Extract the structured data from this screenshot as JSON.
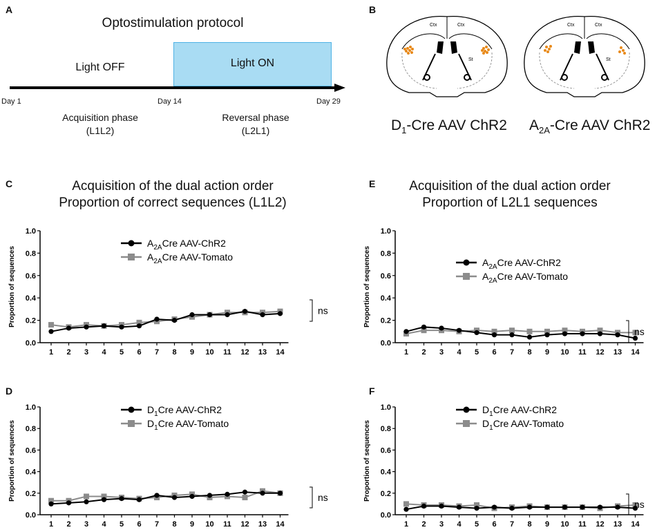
{
  "panels": {
    "a": {
      "letter": "A",
      "title": "Optostimulation protocol",
      "light_off": "Light OFF",
      "light_on": "Light ON",
      "day_start": "Day 1",
      "day_mid": "Day 14",
      "day_end": "Day 29",
      "phase1_line1": "Acquisition phase",
      "phase1_line2": "(L1L2)",
      "phase2_line1": "Reversal phase",
      "phase2_line2": "(L2L1)",
      "colors": {
        "light_on_fill": "#a9dcf3",
        "light_on_border": "#4fb2e5",
        "arrow": "#000000"
      }
    },
    "b": {
      "letter": "B",
      "ctx_label": "Ctx",
      "st_label": "St",
      "left_caption_main": "D",
      "left_caption_sub": "1",
      "left_caption_rest": "-Cre AAV ChR2",
      "right_caption_main": "A",
      "right_caption_sub": "2A",
      "right_caption_rest": "-Cre AAV ChR2",
      "dot_color": "#e88a1a"
    },
    "c_title": {
      "letter": "C",
      "line1": "Acquisition of the dual action order",
      "line2": "Proportion of correct sequences (L1L2)"
    },
    "e_title": {
      "letter": "E",
      "line1": "Acquisition of the dual action order",
      "line2": "Proportion of L2L1 sequences"
    },
    "d_letter": "D",
    "f_letter": "F",
    "ns_label": "ns"
  },
  "chart_data": [
    {
      "id": "C",
      "type": "line",
      "ylabel": "Proportion of sequences",
      "xlabel": "",
      "x": [
        1,
        2,
        3,
        4,
        5,
        6,
        7,
        8,
        9,
        10,
        11,
        12,
        13,
        14
      ],
      "ylim": [
        0,
        1.0
      ],
      "yticks": [
        "0.0",
        "0.2",
        "0.4",
        "0.6",
        "0.8",
        "1.0"
      ],
      "legend": {
        "placement": "top-center"
      },
      "series": [
        {
          "name_main": "A",
          "name_sub": "2A",
          "name_rest": "Cre AAV-ChR2",
          "marker": "circle",
          "color": "#000000",
          "values": [
            0.1,
            0.13,
            0.14,
            0.15,
            0.14,
            0.15,
            0.21,
            0.2,
            0.25,
            0.25,
            0.25,
            0.28,
            0.25,
            0.26
          ]
        },
        {
          "name_main": "A",
          "name_sub": "2A",
          "name_rest": "Cre AAV-Tomato",
          "marker": "square",
          "color": "#8c8c8c",
          "values": [
            0.16,
            0.14,
            0.16,
            0.15,
            0.16,
            0.18,
            0.19,
            0.21,
            0.23,
            0.25,
            0.27,
            0.27,
            0.27,
            0.28
          ]
        }
      ],
      "annotation": "ns"
    },
    {
      "id": "E",
      "type": "line",
      "ylabel": "Proportion of sequences",
      "xlabel": "",
      "x": [
        1,
        2,
        3,
        4,
        5,
        6,
        7,
        8,
        9,
        10,
        11,
        12,
        13,
        14
      ],
      "ylim": [
        0,
        1.0
      ],
      "yticks": [
        "0.0",
        "0.2",
        "0.4",
        "0.6",
        "0.8",
        "1.0"
      ],
      "legend": {
        "placement": "middle-center"
      },
      "series": [
        {
          "name_main": "A",
          "name_sub": "2A",
          "name_rest": "Cre AAV-ChR2",
          "marker": "circle",
          "color": "#000000",
          "values": [
            0.1,
            0.14,
            0.13,
            0.11,
            0.09,
            0.07,
            0.07,
            0.05,
            0.07,
            0.08,
            0.08,
            0.08,
            0.07,
            0.04
          ]
        },
        {
          "name_main": "A",
          "name_sub": "2A",
          "name_rest": "Cre AAV-Tomato",
          "marker": "square",
          "color": "#8c8c8c",
          "values": [
            0.08,
            0.11,
            0.11,
            0.1,
            0.11,
            0.1,
            0.11,
            0.1,
            0.1,
            0.11,
            0.1,
            0.11,
            0.09,
            0.09
          ]
        }
      ],
      "annotation": "ns"
    },
    {
      "id": "D",
      "type": "line",
      "ylabel": "Proportion of sequences",
      "xlabel": "",
      "x": [
        1,
        2,
        3,
        4,
        5,
        6,
        7,
        8,
        9,
        10,
        11,
        12,
        13,
        14
      ],
      "ylim": [
        0,
        1.0
      ],
      "yticks": [
        "0.0",
        "0.2",
        "0.4",
        "0.6",
        "0.8",
        "1.0"
      ],
      "legend": {
        "placement": "top-center"
      },
      "series": [
        {
          "name_main": "D",
          "name_sub": "1",
          "name_rest": "Cre AAV-ChR2",
          "marker": "circle",
          "color": "#000000",
          "values": [
            0.1,
            0.11,
            0.12,
            0.14,
            0.15,
            0.14,
            0.18,
            0.16,
            0.17,
            0.18,
            0.19,
            0.21,
            0.2,
            0.2
          ]
        },
        {
          "name_main": "D",
          "name_sub": "1",
          "name_rest": "Cre AAV-Tomato",
          "marker": "square",
          "color": "#8c8c8c",
          "values": [
            0.13,
            0.13,
            0.17,
            0.17,
            0.16,
            0.15,
            0.16,
            0.18,
            0.19,
            0.16,
            0.17,
            0.16,
            0.22,
            0.2
          ]
        }
      ],
      "annotation": "ns"
    },
    {
      "id": "F",
      "type": "line",
      "ylabel": "Proportion of sequences",
      "xlabel": "",
      "x": [
        1,
        2,
        3,
        4,
        5,
        6,
        7,
        8,
        9,
        10,
        11,
        12,
        13,
        14
      ],
      "ylim": [
        0,
        1.0
      ],
      "yticks": [
        "0.0",
        "0.2",
        "0.4",
        "0.6",
        "0.8",
        "1.0"
      ],
      "legend": {
        "placement": "top-center"
      },
      "series": [
        {
          "name_main": "D",
          "name_sub": "1",
          "name_rest": "Cre AAV-ChR2",
          "marker": "circle",
          "color": "#000000",
          "values": [
            0.05,
            0.08,
            0.08,
            0.07,
            0.06,
            0.07,
            0.06,
            0.07,
            0.07,
            0.07,
            0.07,
            0.07,
            0.07,
            0.06
          ]
        },
        {
          "name_main": "D",
          "name_sub": "1",
          "name_rest": "Cre AAV-Tomato",
          "marker": "square",
          "color": "#8c8c8c",
          "values": [
            0.1,
            0.09,
            0.09,
            0.08,
            0.09,
            0.06,
            0.07,
            0.08,
            0.07,
            0.07,
            0.07,
            0.06,
            0.08,
            0.09
          ]
        }
      ],
      "annotation": "ns"
    }
  ]
}
